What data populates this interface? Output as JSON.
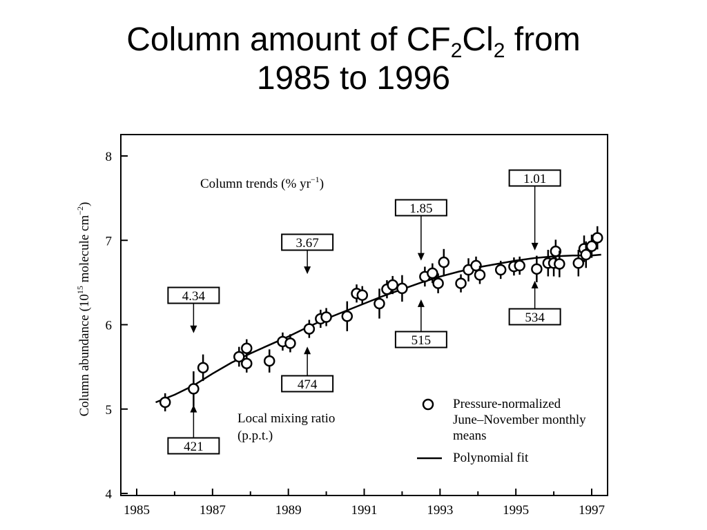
{
  "slide": {
    "title_part1": "Column amount of CF",
    "title_sub1": "2",
    "title_part2": "Cl",
    "title_sub2": "2",
    "title_part3": " from",
    "title_line2": "1985 to 1996"
  },
  "chart_data": {
    "type": "scatter",
    "ylabel": "Column abundance (10",
    "ylabel_sup1": "15",
    "ylabel_mid": " molecule cm",
    "ylabel_sup2": "−2",
    "ylabel_end": ")",
    "xlim": [
      1985,
      1997
    ],
    "ylim": [
      4,
      8.1
    ],
    "x_ticks": [
      1985,
      1987,
      1989,
      1991,
      1993,
      1995,
      1997
    ],
    "y_ticks": [
      4,
      5,
      6,
      7,
      8
    ],
    "annotation_trends_title": "Column trends (% yr",
    "annotation_trends_sup": "−1",
    "annotation_trends_end": ")",
    "annotation_mixing_title_line1": "Local mixing ratio",
    "annotation_mixing_title_line2": "(p.p.t.)",
    "legend": {
      "placement": "bottom-right",
      "points_label_line1": "Pressure-normalized",
      "points_label_line2": "June–November monthly",
      "points_label_line3": "means",
      "line_label": "Polynomial fit"
    },
    "trend_boxes": [
      {
        "label": "4.34",
        "x": 1986.5,
        "y": 5.9
      },
      {
        "label": "3.67",
        "x": 1989.5,
        "y": 6.6
      },
      {
        "label": "1.85",
        "x": 1992.5,
        "y": 6.76
      },
      {
        "label": "1.01",
        "x": 1995.5,
        "y": 6.88
      }
    ],
    "mixing_boxes": [
      {
        "label": "421",
        "x": 1986.5,
        "y": 5.05
      },
      {
        "label": "474",
        "x": 1989.5,
        "y": 5.74
      },
      {
        "label": "515",
        "x": 1992.5,
        "y": 6.3
      },
      {
        "label": "534",
        "x": 1995.5,
        "y": 6.52
      }
    ],
    "points": [
      {
        "x": 1985.75,
        "y": 5.08,
        "err": 0.05
      },
      {
        "x": 1986.5,
        "y": 5.24,
        "err": 0.15
      },
      {
        "x": 1986.75,
        "y": 5.49,
        "err": 0.1
      },
      {
        "x": 1987.7,
        "y": 5.62,
        "err": 0.06
      },
      {
        "x": 1987.9,
        "y": 5.72,
        "err": 0.05
      },
      {
        "x": 1987.9,
        "y": 5.54,
        "err": 0.05
      },
      {
        "x": 1988.5,
        "y": 5.57,
        "err": 0.08
      },
      {
        "x": 1988.85,
        "y": 5.8,
        "err": 0.05
      },
      {
        "x": 1989.05,
        "y": 5.78,
        "err": 0.05
      },
      {
        "x": 1989.55,
        "y": 5.95,
        "err": 0.05
      },
      {
        "x": 1989.85,
        "y": 6.07,
        "err": 0.05
      },
      {
        "x": 1990.0,
        "y": 6.09,
        "err": 0.05
      },
      {
        "x": 1990.55,
        "y": 6.1,
        "err": 0.12
      },
      {
        "x": 1990.8,
        "y": 6.37,
        "err": 0.05
      },
      {
        "x": 1990.95,
        "y": 6.35,
        "err": 0.05
      },
      {
        "x": 1991.4,
        "y": 6.25,
        "err": 0.12
      },
      {
        "x": 1991.6,
        "y": 6.42,
        "err": 0.05
      },
      {
        "x": 1991.75,
        "y": 6.47,
        "err": 0.05
      },
      {
        "x": 1992.0,
        "y": 6.43,
        "err": 0.1
      },
      {
        "x": 1992.6,
        "y": 6.57,
        "err": 0.06
      },
      {
        "x": 1992.8,
        "y": 6.61,
        "err": 0.06
      },
      {
        "x": 1992.95,
        "y": 6.49,
        "err": 0.06
      },
      {
        "x": 1993.1,
        "y": 6.74,
        "err": 0.1
      },
      {
        "x": 1993.55,
        "y": 6.49,
        "err": 0.05
      },
      {
        "x": 1993.75,
        "y": 6.65,
        "err": 0.08
      },
      {
        "x": 1993.95,
        "y": 6.7,
        "err": 0.05
      },
      {
        "x": 1994.05,
        "y": 6.59,
        "err": 0.05
      },
      {
        "x": 1994.6,
        "y": 6.65,
        "err": 0.05
      },
      {
        "x": 1994.95,
        "y": 6.69,
        "err": 0.05
      },
      {
        "x": 1995.1,
        "y": 6.7,
        "err": 0.05
      },
      {
        "x": 1995.55,
        "y": 6.66,
        "err": 0.1
      },
      {
        "x": 1995.85,
        "y": 6.73,
        "err": 0.1
      },
      {
        "x": 1996.0,
        "y": 6.73,
        "err": 0.1
      },
      {
        "x": 1996.05,
        "y": 6.87,
        "err": 0.08
      },
      {
        "x": 1996.15,
        "y": 6.72,
        "err": 0.1
      },
      {
        "x": 1996.65,
        "y": 6.73,
        "err": 0.1
      },
      {
        "x": 1996.8,
        "y": 6.9,
        "err": 0.1
      },
      {
        "x": 1996.85,
        "y": 6.83,
        "err": 0.1
      },
      {
        "x": 1997.0,
        "y": 6.93,
        "err": 0.08
      },
      {
        "x": 1997.15,
        "y": 7.03,
        "err": 0.08
      }
    ],
    "fit_curve": [
      {
        "x": 1985.5,
        "y": 5.08
      },
      {
        "x": 1986.0,
        "y": 5.17
      },
      {
        "x": 1986.5,
        "y": 5.28
      },
      {
        "x": 1987.0,
        "y": 5.42
      },
      {
        "x": 1987.5,
        "y": 5.55
      },
      {
        "x": 1988.0,
        "y": 5.66
      },
      {
        "x": 1988.5,
        "y": 5.76
      },
      {
        "x": 1989.0,
        "y": 5.86
      },
      {
        "x": 1989.5,
        "y": 5.97
      },
      {
        "x": 1990.0,
        "y": 6.07
      },
      {
        "x": 1990.5,
        "y": 6.16
      },
      {
        "x": 1991.0,
        "y": 6.25
      },
      {
        "x": 1991.5,
        "y": 6.34
      },
      {
        "x": 1992.0,
        "y": 6.42
      },
      {
        "x": 1992.5,
        "y": 6.5
      },
      {
        "x": 1993.0,
        "y": 6.57
      },
      {
        "x": 1993.5,
        "y": 6.63
      },
      {
        "x": 1994.0,
        "y": 6.68
      },
      {
        "x": 1994.5,
        "y": 6.72
      },
      {
        "x": 1995.0,
        "y": 6.76
      },
      {
        "x": 1995.5,
        "y": 6.79
      },
      {
        "x": 1996.0,
        "y": 6.81
      },
      {
        "x": 1996.5,
        "y": 6.82
      },
      {
        "x": 1997.0,
        "y": 6.82
      },
      {
        "x": 1997.25,
        "y": 6.83
      }
    ]
  }
}
